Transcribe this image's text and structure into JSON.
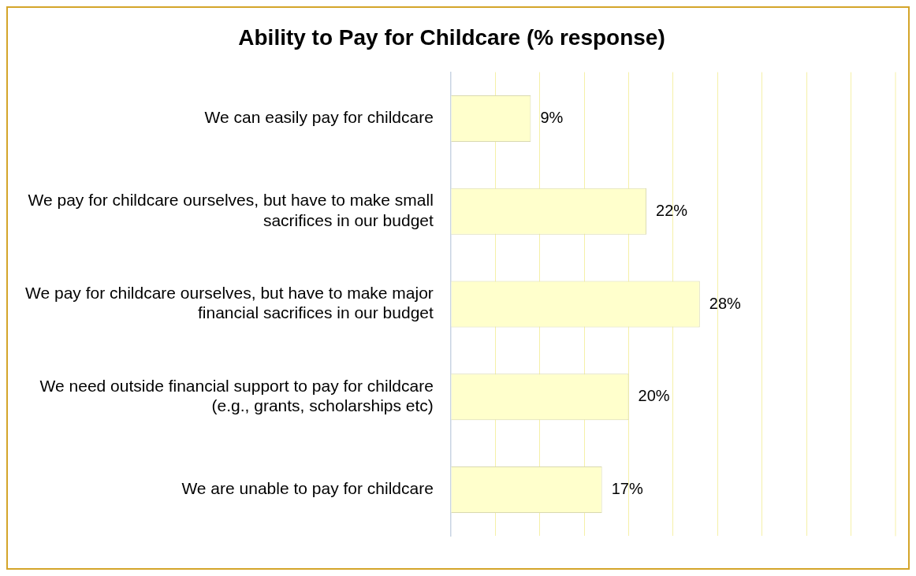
{
  "chart_data": {
    "type": "bar",
    "orientation": "horizontal",
    "title": "Ability to Pay for Childcare (% response)",
    "categories": [
      "We can easily pay for childcare",
      "We pay for childcare ourselves, but have to make small sacrifices in our budget",
      "We pay for childcare ourselves, but have to make major financial sacrifices in our budget",
      "We need outside financial support to pay for childcare (e.g., grants, scholarships etc)",
      "We are unable to pay for childcare"
    ],
    "values": [
      9,
      22,
      28,
      20,
      17
    ],
    "value_labels": [
      "9%",
      "22%",
      "28%",
      "20%",
      "17%"
    ],
    "color": "#ffffcc",
    "xlim": [
      0,
      50
    ],
    "xticks": [
      {
        "value": 0,
        "label": null
      },
      {
        "value": 5,
        "label": null
      },
      {
        "value": 10,
        "label": null
      },
      {
        "value": 15,
        "label": null
      },
      {
        "value": 20,
        "label": null
      },
      {
        "value": 25,
        "label": null
      },
      {
        "value": 30,
        "label": null
      },
      {
        "value": 35,
        "label": null
      },
      {
        "value": 40,
        "label": null
      },
      {
        "value": 45,
        "label": null
      }
    ],
    "grid": "x",
    "tick_labels": "y",
    "legend": false
  }
}
